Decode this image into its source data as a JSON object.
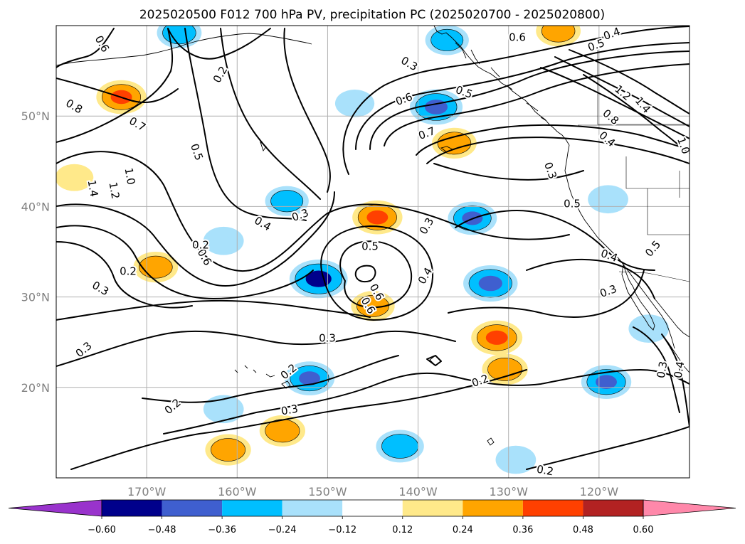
{
  "figure": {
    "title": "2025020500 F012 700 hPa PV, precipitation PC (2025020700 - 2025020800)"
  },
  "map": {
    "lon_range": [
      -180,
      -110
    ],
    "lat_range": [
      10,
      60
    ],
    "lon_ticks": [
      "170°W",
      "160°W",
      "150°W",
      "140°W",
      "130°W",
      "120°W"
    ],
    "lat_ticks": [
      "20°N",
      "30°N",
      "40°N",
      "50°N"
    ],
    "grid": true
  },
  "pv_contour_labels": [
    "0.6",
    "0.3",
    "0.6",
    "0.4",
    "0.5",
    "0.2",
    "0.8",
    "0.7",
    "0.5",
    "0.6",
    "0.7",
    "0.5",
    "1.2",
    "1.4",
    "0.8",
    "0.4",
    "1.0",
    "1.4",
    "1.2",
    "1.0",
    "0.3",
    "0.5",
    "0.3",
    "0.4",
    "0.3",
    "0.6",
    "0.5",
    "0.2",
    "0.3",
    "0.6",
    "0.4",
    "0.4",
    "0.3",
    "0.5",
    "0.3",
    "0.6",
    "0.3",
    "0.2",
    "0.2",
    "0.2",
    "0.2",
    "0.3",
    "0.3",
    "0.4",
    "0.2"
  ],
  "precip_pc_blobs": [
    {
      "lon": -166.4,
      "lat": 59.2,
      "value": -0.3
    },
    {
      "lon": -172.8,
      "lat": 52.1,
      "value": 0.4
    },
    {
      "lon": -178.0,
      "lat": 43.2,
      "value": 0.18
    },
    {
      "lon": -147.0,
      "lat": 51.4,
      "value": -0.2
    },
    {
      "lon": -138.0,
      "lat": 51.0,
      "value": -0.45
    },
    {
      "lon": -136.0,
      "lat": 47.0,
      "value": 0.3
    },
    {
      "lon": -136.8,
      "lat": 58.4,
      "value": -0.28
    },
    {
      "lon": -124.5,
      "lat": 59.4,
      "value": 0.3
    },
    {
      "lon": -154.5,
      "lat": 40.6,
      "value": -0.28
    },
    {
      "lon": -144.5,
      "lat": 38.8,
      "value": 0.4
    },
    {
      "lon": -134.0,
      "lat": 38.7,
      "value": -0.38
    },
    {
      "lon": -161.5,
      "lat": 36.2,
      "value": -0.22
    },
    {
      "lon": -169.0,
      "lat": 33.3,
      "value": 0.3
    },
    {
      "lon": -151.0,
      "lat": 32.0,
      "value": -0.55
    },
    {
      "lon": -145.0,
      "lat": 29.0,
      "value": 0.28
    },
    {
      "lon": -132.0,
      "lat": 31.5,
      "value": -0.48
    },
    {
      "lon": -131.3,
      "lat": 25.5,
      "value": 0.42
    },
    {
      "lon": -130.4,
      "lat": 22.0,
      "value": 0.32
    },
    {
      "lon": -152.0,
      "lat": 21.0,
      "value": -0.4
    },
    {
      "lon": -155.0,
      "lat": 15.2,
      "value": 0.32
    },
    {
      "lon": -161.0,
      "lat": 13.1,
      "value": 0.32
    },
    {
      "lon": -161.5,
      "lat": 17.6,
      "value": -0.22
    },
    {
      "lon": -142.0,
      "lat": 13.5,
      "value": -0.36
    },
    {
      "lon": -129.2,
      "lat": 12.0,
      "value": -0.22
    },
    {
      "lon": -119.2,
      "lat": 20.6,
      "value": -0.4
    },
    {
      "lon": -114.5,
      "lat": 26.5,
      "value": -0.22
    },
    {
      "lon": -119.0,
      "lat": 40.8,
      "value": -0.22
    }
  ],
  "colorbar": {
    "boundaries": [
      -0.6,
      -0.48,
      -0.36,
      -0.24,
      -0.12,
      0.12,
      0.24,
      0.36,
      0.48,
      0.6
    ],
    "tick_labels": [
      "−0.60",
      "−0.48",
      "−0.36",
      "−0.24",
      "−0.12",
      "0.12",
      "0.24",
      "0.36",
      "0.48",
      "0.60"
    ],
    "colors": [
      "#9933cc",
      "#00008b",
      "#3f5fcf",
      "#00bfff",
      "#a9e1fb",
      "#ffffff",
      "#ffe98a",
      "#ffa500",
      "#ff4000",
      "#b22222",
      "#ff88aa"
    ],
    "extend": "both"
  }
}
